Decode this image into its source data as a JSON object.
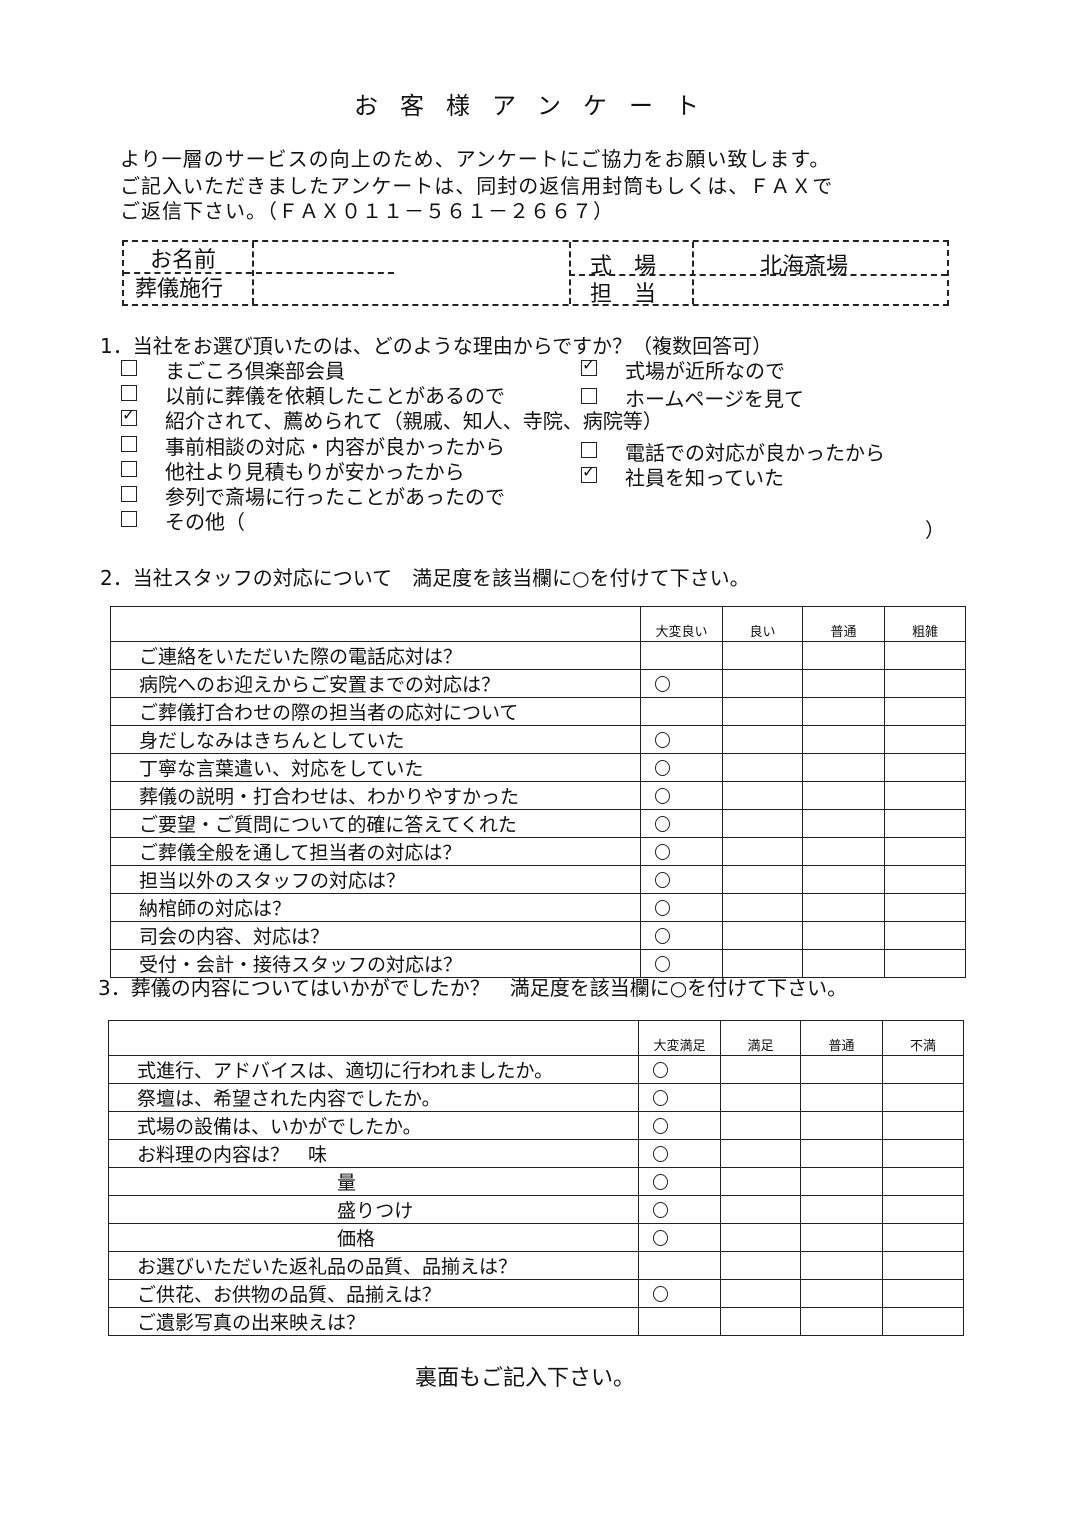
{
  "title": "お客様アンケート",
  "intro": [
    "より一層のサービスの向上のため、アンケートにご協力をお願い致します。",
    "ご記入いただきましたアンケートは、同封の返信用封筒もしくは、ＦＡＸで",
    "ご返信下さい。（ＦＡＸ０１１－５６１－２６６７）"
  ],
  "header": {
    "name_label": "お名前",
    "funeral_label": "葬儀施行",
    "venue_label": "式　場",
    "venue_value": "北海斎場",
    "staff_label": "担　当"
  },
  "q1": {
    "question": "1．当社をお選び頂いたのは、どのような理由からですか？（複数回答可）",
    "left": [
      {
        "label": "まごころ倶楽部会員",
        "checked": false
      },
      {
        "label": "以前に葬儀を依頼したことがあるので",
        "checked": false
      },
      {
        "label": "紹介されて、薦められて（親戚、知人、寺院、病院等）",
        "checked": true
      },
      {
        "label": "事前相談の対応・内容が良かったから",
        "checked": false
      },
      {
        "label": "他社より見積もりが安かったから",
        "checked": false
      },
      {
        "label": "参列で斎場に行ったことがあったので",
        "checked": false
      },
      {
        "label": "その他（",
        "checked": false
      }
    ],
    "right": [
      {
        "label": "式場が近所なので",
        "checked": true
      },
      {
        "label": "ホームページを見て",
        "checked": false
      },
      {
        "label": "電話での対応が良かったから",
        "checked": false
      },
      {
        "label": "社員を知っていた",
        "checked": true
      }
    ],
    "other_close": "）"
  },
  "q2": {
    "question": "2．当社スタッフの対応について　満足度を該当欄に○を付けて下さい。",
    "columns": [
      "大変良い",
      "良い",
      "普通",
      "粗雑"
    ],
    "rows": [
      {
        "label": "ご連絡をいただいた際の電話応対は？",
        "answer": null
      },
      {
        "label": "病院へのお迎えからご安置までの対応は？",
        "answer": 0
      },
      {
        "label": "ご葬儀打合わせの際の担当者の応対について",
        "answer": null,
        "heading": true
      },
      {
        "label": "身だしなみはきちんとしていた",
        "answer": 0,
        "dash": true
      },
      {
        "label": "丁寧な言葉遣い、対応をしていた",
        "answer": 0,
        "dash": true
      },
      {
        "label": "葬儀の説明・打合わせは、わかりやすかった",
        "answer": 0,
        "dash": true
      },
      {
        "label": "ご要望・ご質問について的確に答えてくれた",
        "answer": 0
      },
      {
        "label": "ご葬儀全般を通して担当者の対応は？",
        "answer": 0
      },
      {
        "label": "担当以外のスタッフの対応は？",
        "answer": 0
      },
      {
        "label": "納棺師の対応は？",
        "answer": 0
      },
      {
        "label": "司会の内容、対応は？",
        "answer": 0
      },
      {
        "label": "受付・会計・接待スタッフの対応は？",
        "answer": 0
      }
    ]
  },
  "q3": {
    "question": "3．葬儀の内容についてはいかがでしたか？　満足度を該当欄に○を付けて下さい。",
    "columns": [
      "大変満足",
      "満足",
      "普通",
      "不満"
    ],
    "rows": [
      {
        "label": "式進行、アドバイスは、適切に行われましたか。",
        "answer": 0,
        "dash": true
      },
      {
        "label": "祭壇は、希望された内容でしたか。",
        "answer": 0,
        "dash": true
      },
      {
        "label": "式場の設備は、いかがでしたか。",
        "answer": 0
      },
      {
        "label": "お料理の内容は？　味",
        "answer": 0,
        "dash": true
      },
      {
        "label": "量",
        "answer": 0,
        "dash": true,
        "sub": true
      },
      {
        "label": "盛りつけ",
        "answer": 0,
        "dash": true,
        "sub": true
      },
      {
        "label": "価格",
        "answer": 0,
        "sub": true
      },
      {
        "label": "お選びいただいた返礼品の品質、品揃えは？",
        "answer": null
      },
      {
        "label": "ご供花、お供物の品質、品揃えは？",
        "answer": 0
      },
      {
        "label": "ご遺影写真の出来映えは？",
        "answer": null
      }
    ]
  },
  "footer": "裏面もご記入下さい。"
}
